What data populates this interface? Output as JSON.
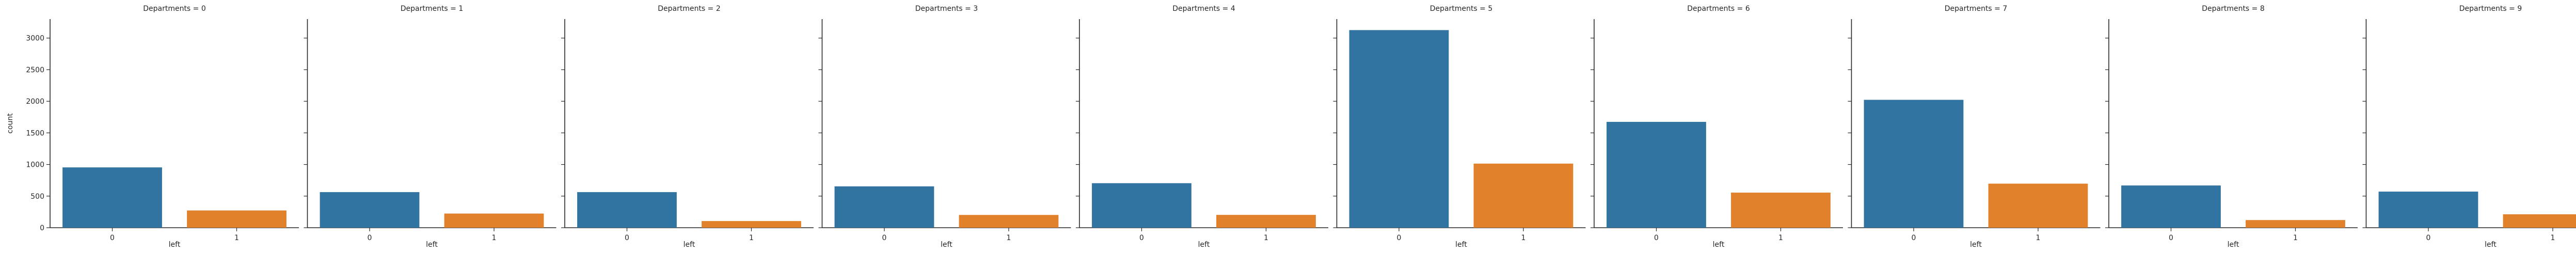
{
  "chart_data": {
    "type": "bar",
    "layout": "small-multiples",
    "facet_label_template": "Departments  = {v}",
    "facets": [
      {
        "department": 0,
        "title": "Departments  = 0",
        "categories": [
          "0",
          "1"
        ],
        "values": [
          954,
          273
        ]
      },
      {
        "department": 1,
        "title": "Departments  = 1",
        "categories": [
          "0",
          "1"
        ],
        "values": [
          563,
          224
        ]
      },
      {
        "department": 2,
        "title": "Departments  = 2",
        "categories": [
          "0",
          "1"
        ],
        "values": [
          563,
          105
        ]
      },
      {
        "department": 3,
        "title": "Departments  = 3",
        "categories": [
          "0",
          "1"
        ],
        "values": [
          654,
          202
        ]
      },
      {
        "department": 4,
        "title": "Departments  = 4",
        "categories": [
          "0",
          "1"
        ],
        "values": [
          704,
          203
        ]
      },
      {
        "department": 5,
        "title": "Departments  = 5",
        "categories": [
          "0",
          "1"
        ],
        "values": [
          3126,
          1014
        ]
      },
      {
        "department": 6,
        "title": "Departments  = 6",
        "categories": [
          "0",
          "1"
        ],
        "values": [
          1674,
          555
        ]
      },
      {
        "department": 7,
        "title": "Departments  = 7",
        "categories": [
          "0",
          "1"
        ],
        "values": [
          2023,
          697
        ]
      },
      {
        "department": 8,
        "title": "Departments  = 8",
        "categories": [
          "0",
          "1"
        ],
        "values": [
          668,
          121
        ]
      },
      {
        "department": 9,
        "title": "Departments  = 9",
        "categories": [
          "0",
          "1"
        ],
        "values": [
          571,
          212
        ]
      }
    ],
    "xlabel": "left",
    "ylabel": "count",
    "ylim": [
      0,
      3300
    ],
    "yticks": [
      0,
      500,
      1000,
      1500,
      2000,
      2500,
      3000
    ],
    "sharey": true,
    "grid": false,
    "colors": [
      "#3274a1",
      "#e1812c"
    ]
  }
}
